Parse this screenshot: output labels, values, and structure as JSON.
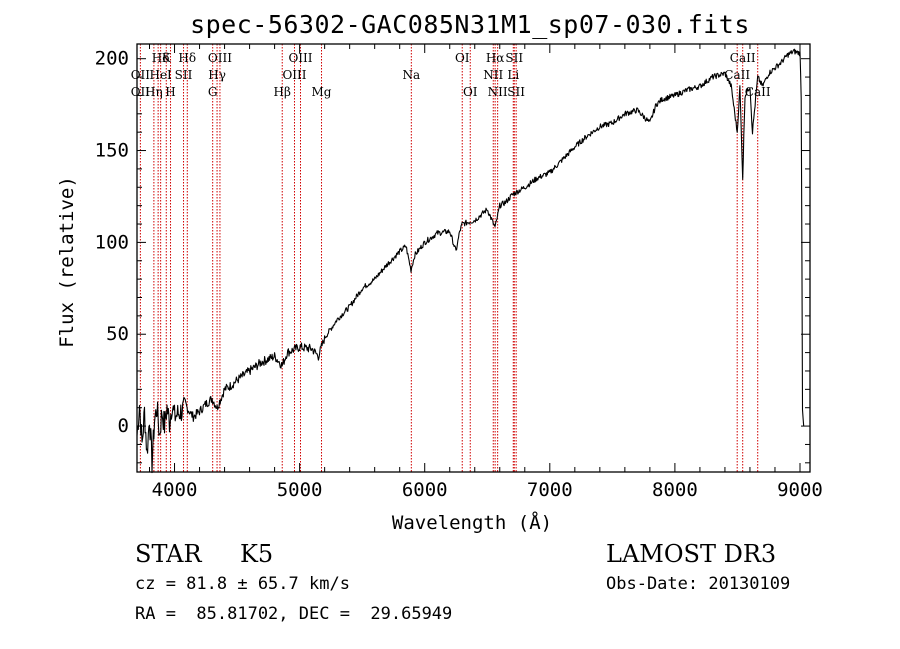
{
  "chart_data": {
    "type": "line",
    "title": "spec-56302-GAC085N31M1_sp07-030.fits",
    "xlabel": "Wavelength (Å)",
    "ylabel": "Flux (relative)",
    "xlim": [
      3700,
      9080
    ],
    "ylim": [
      -25,
      208
    ],
    "xticks": [
      4000,
      5000,
      6000,
      7000,
      8000,
      9000
    ],
    "yticks": [
      0,
      50,
      100,
      150,
      200
    ],
    "grid": false,
    "series": [
      {
        "name": "flux",
        "x": [
          3700,
          3720,
          3740,
          3760,
          3780,
          3800,
          3820,
          3840,
          3860,
          3880,
          3900,
          3920,
          3940,
          3960,
          3980,
          4000,
          4050,
          4100,
          4150,
          4200,
          4250,
          4300,
          4340,
          4400,
          4450,
          4500,
          4600,
          4700,
          4800,
          4861,
          4900,
          5000,
          5100,
          5150,
          5200,
          5300,
          5400,
          5500,
          5600,
          5700,
          5800,
          5850,
          5890,
          5920,
          6000,
          6100,
          6200,
          6250,
          6280,
          6300,
          6400,
          6500,
          6563,
          6600,
          6650,
          6700,
          6800,
          6900,
          7000,
          7100,
          7200,
          7300,
          7400,
          7500,
          7600,
          7700,
          7800,
          7850,
          7900,
          8000,
          8100,
          8200,
          8300,
          8400,
          8450,
          8498,
          8520,
          8542,
          8560,
          8600,
          8620,
          8662,
          8700,
          8750,
          8800,
          8850,
          8900,
          8950,
          9000,
          9010,
          9020,
          9030
        ],
        "values": [
          -5,
          12,
          -10,
          8,
          -15,
          5,
          -20,
          3,
          10,
          -5,
          8,
          0,
          10,
          2,
          12,
          5,
          8,
          10,
          5,
          8,
          12,
          15,
          10,
          20,
          22,
          25,
          30,
          35,
          38,
          33,
          40,
          43,
          42,
          38,
          48,
          58,
          65,
          75,
          80,
          88,
          95,
          98,
          85,
          93,
          100,
          105,
          106,
          95,
          106,
          110,
          112,
          118,
          108,
          120,
          122,
          126,
          130,
          135,
          138,
          145,
          152,
          158,
          163,
          165,
          170,
          172,
          165,
          175,
          178,
          180,
          183,
          185,
          190,
          192,
          185,
          160,
          185,
          135,
          180,
          185,
          160,
          190,
          185,
          192,
          195,
          198,
          202,
          204,
          203,
          180,
          10,
          0
        ]
      }
    ],
    "line_marker_labels": [
      {
        "text": "Hδ",
        "x": 3889
      },
      {
        "text": "K",
        "x": 3934
      },
      {
        "text": "Hδ",
        "x": 4102
      },
      {
        "text": "OIII",
        "x": 4363
      },
      {
        "text": "OIII",
        "x": 5007
      },
      {
        "text": "OII",
        "x": 3727
      },
      {
        "text": "HeI",
        "x": 3889
      },
      {
        "text": "SII",
        "x": 4072
      },
      {
        "text": "Hγ",
        "x": 4340
      },
      {
        "text": "OIII",
        "x": 4959
      },
      {
        "text": "OII",
        "x": 3727
      },
      {
        "text": "Hη",
        "x": 3835
      },
      {
        "text": "H",
        "x": 3968
      },
      {
        "text": "G",
        "x": 4305
      },
      {
        "text": "Hβ",
        "x": 4861
      },
      {
        "text": "Mg",
        "x": 5175
      },
      {
        "text": "Na",
        "x": 5893
      },
      {
        "text": "OI",
        "x": 6300
      },
      {
        "text": "OI",
        "x": 6364
      },
      {
        "text": "Hα",
        "x": 6563
      },
      {
        "text": "SII",
        "x": 6716
      },
      {
        "text": "NII",
        "x": 6548
      },
      {
        "text": "Li",
        "x": 6708
      },
      {
        "text": "NII",
        "x": 6583
      },
      {
        "text": "SII",
        "x": 6731
      },
      {
        "text": "CaII",
        "x": 8542
      },
      {
        "text": "CaII",
        "x": 8498
      },
      {
        "text": "CaII",
        "x": 8662
      }
    ],
    "vertical_lines_x": [
      3727,
      3835,
      3869,
      3889,
      3934,
      3968,
      4072,
      4102,
      4305,
      4340,
      4363,
      4861,
      4959,
      5007,
      5175,
      5893,
      6300,
      6364,
      6548,
      6563,
      6583,
      6708,
      6716,
      6731,
      8498,
      8542,
      8662
    ]
  },
  "info": {
    "class": "STAR",
    "subclass": "K5",
    "survey": "LAMOST DR3",
    "cz": "cz = 81.8 ± 65.7 km/s",
    "obs_date": "Obs-Date: 20130109",
    "radec": "RA =  85.81702, DEC =  29.65949"
  }
}
